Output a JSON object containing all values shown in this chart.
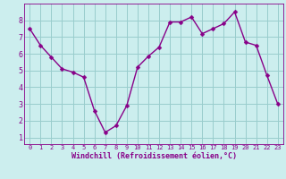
{
  "x": [
    0,
    1,
    2,
    3,
    4,
    5,
    6,
    7,
    8,
    9,
    10,
    11,
    12,
    13,
    14,
    15,
    16,
    17,
    18,
    19,
    20,
    21,
    22,
    23
  ],
  "y": [
    7.5,
    6.5,
    5.8,
    5.1,
    4.9,
    4.6,
    2.6,
    1.3,
    1.7,
    2.9,
    5.2,
    5.85,
    6.4,
    7.9,
    7.9,
    8.2,
    7.2,
    7.5,
    7.8,
    8.5,
    6.7,
    6.5,
    4.7,
    3.0
  ],
  "line_color": "#880088",
  "marker_color": "#880088",
  "bg_color": "#cceeee",
  "grid_color": "#99cccc",
  "xlabel": "Windchill (Refroidissement éolien,°C)",
  "xlabel_color": "#880088",
  "tick_color": "#880088",
  "ylim": [
    0.6,
    9.0
  ],
  "xlim": [
    -0.5,
    23.5
  ],
  "yticks": [
    1,
    2,
    3,
    4,
    5,
    6,
    7,
    8
  ],
  "xticks": [
    0,
    1,
    2,
    3,
    4,
    5,
    6,
    7,
    8,
    9,
    10,
    11,
    12,
    13,
    14,
    15,
    16,
    17,
    18,
    19,
    20,
    21,
    22,
    23
  ],
  "xtick_labels": [
    "0",
    "1",
    "2",
    "3",
    "4",
    "5",
    "6",
    "7",
    "8",
    "9",
    "10",
    "11",
    "12",
    "13",
    "14",
    "15",
    "16",
    "17",
    "18",
    "19",
    "20",
    "21",
    "22",
    "23"
  ],
  "marker_size": 2.5,
  "line_width": 1.0,
  "xlabel_fontsize": 6.0,
  "xtick_fontsize": 5.0,
  "ytick_fontsize": 6.0
}
